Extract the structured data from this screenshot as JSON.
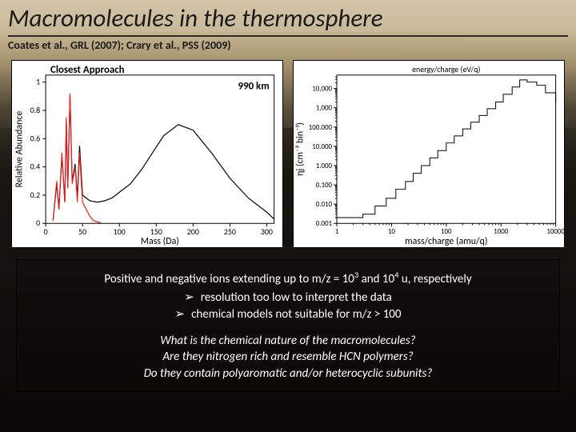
{
  "title": "Macromolecules in the thermosphere",
  "refs": "Coates et al., GRL (2007); Crary et al., PSS (2009)",
  "left_chart": {
    "type": "line",
    "title": "Closest Approach",
    "annotation": "990 km",
    "xlabel": "Mass (Da)",
    "ylabel": "Relative Abundance",
    "xlim": [
      0,
      310
    ],
    "ylim": [
      0,
      1.05
    ],
    "xticks": [
      0,
      50,
      100,
      150,
      200,
      250,
      300
    ],
    "yticks": [
      0,
      0.2,
      0.4,
      0.6,
      0.8,
      1
    ],
    "background": "#ffffff",
    "series": [
      {
        "color": "#000000",
        "width": 1.2,
        "x": [
          10,
          15,
          18,
          22,
          26,
          28,
          30,
          33,
          36,
          40,
          43,
          46,
          50,
          55,
          60,
          70,
          80,
          90,
          100,
          115,
          130,
          145,
          160,
          180,
          200,
          225,
          250,
          275,
          300,
          310
        ],
        "y": [
          0.02,
          0.28,
          0.1,
          0.48,
          0.15,
          0.72,
          0.25,
          0.9,
          0.3,
          0.42,
          0.18,
          0.55,
          0.2,
          0.18,
          0.16,
          0.15,
          0.16,
          0.18,
          0.22,
          0.28,
          0.38,
          0.5,
          0.62,
          0.7,
          0.66,
          0.5,
          0.32,
          0.18,
          0.08,
          0.03
        ]
      },
      {
        "color": "#e62020",
        "width": 1.2,
        "x": [
          10,
          15,
          18,
          22,
          26,
          28,
          30,
          33,
          36,
          40,
          43,
          46,
          50,
          55,
          60,
          65,
          70,
          75
        ],
        "y": [
          0.02,
          0.3,
          0.1,
          0.5,
          0.15,
          0.75,
          0.25,
          0.92,
          0.28,
          0.4,
          0.15,
          0.5,
          0.15,
          0.1,
          0.05,
          0.02,
          0.01,
          0.005
        ]
      }
    ]
  },
  "right_chart": {
    "type": "step-log",
    "title_top": "energy/charge (eV/q)",
    "xlabel": "mass/charge (amu/q)",
    "ylabel": "ηj (cm⁻³ bin⁻¹)",
    "xlim": [
      1,
      10000
    ],
    "ylim": [
      0.001,
      50000
    ],
    "xticks": [
      1,
      10,
      100,
      1000,
      10000
    ],
    "yticks_labels": [
      "0.001",
      "0.010",
      "0.100",
      "1.000",
      "10.000",
      "100.000",
      "1,000",
      "10,000"
    ],
    "background": "#ffffff",
    "line_color": "#000000",
    "line_width": 1,
    "steps_x": [
      1,
      3,
      5,
      8,
      12,
      18,
      25,
      35,
      50,
      70,
      100,
      140,
      200,
      280,
      400,
      560,
      800,
      1100,
      1600,
      2200,
      3000,
      4500,
      6500,
      10000
    ],
    "steps_y": [
      0.002,
      0.003,
      0.008,
      0.02,
      0.06,
      0.15,
      0.4,
      1,
      2.5,
      6,
      15,
      35,
      80,
      180,
      400,
      900,
      2000,
      5000,
      12000,
      28000,
      22000,
      15000,
      6000,
      2000
    ]
  },
  "text": {
    "line1_a": "Positive and negative ions extending up to m/z = 10",
    "line1_b": " and 10",
    "line1_c": " u, respectively",
    "sup1": "3",
    "sup2": "4",
    "b1": "resolution too low to interpret the data",
    "b2": "chemical models not suitable for m/z > 100",
    "q1": "What is the chemical nature of the macromolecules?",
    "q2": "Are they nitrogen rich and resemble HCN polymers?",
    "q3": "Do they contain polyaromatic and/or heterocyclic subunits?"
  }
}
